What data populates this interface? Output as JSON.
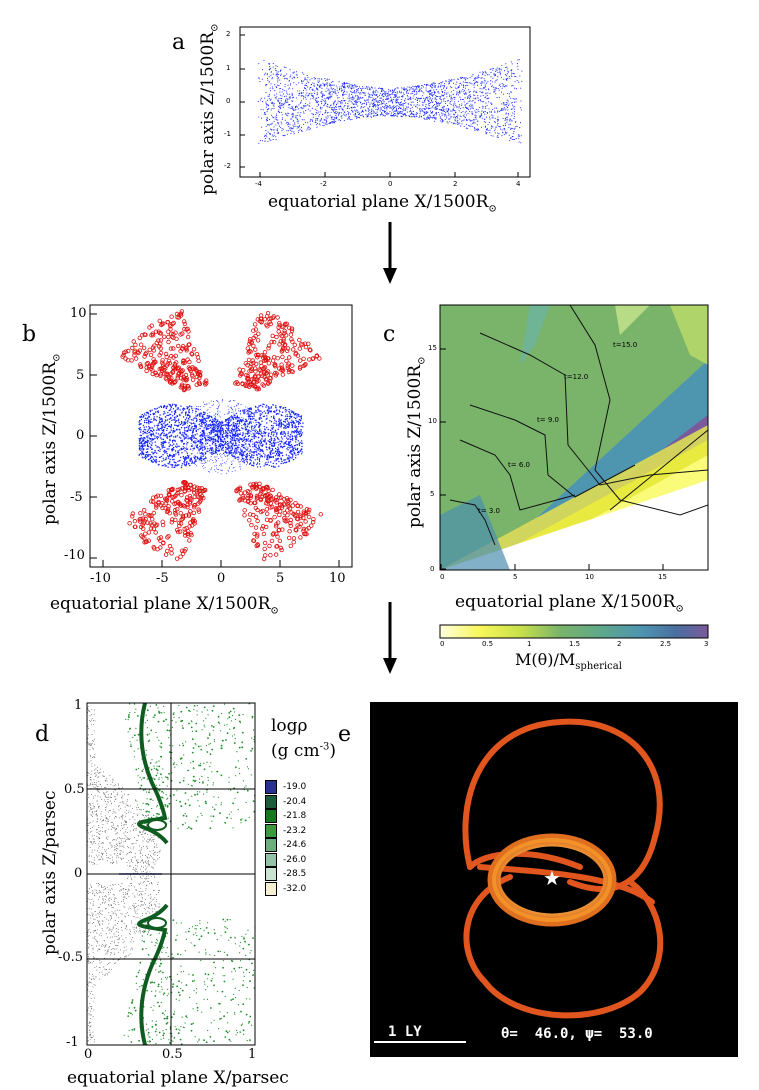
{
  "panels": {
    "a": {
      "label": "a",
      "ylabel": "polar axis Z/1500R",
      "xlabel": "equatorial plane X/1500R",
      "sun": "⊙",
      "xticks": [
        "-4",
        "-2",
        "0",
        "2",
        "4"
      ],
      "yticks": [
        "2",
        "1",
        "0",
        "-1",
        "-2"
      ]
    },
    "b": {
      "label": "b",
      "ylabel": "polar axis Z/1500R",
      "xlabel": "equatorial plane X/1500R",
      "sun": "⊙",
      "xticks": [
        "-10",
        "-5",
        "0",
        "5",
        "10"
      ],
      "yticks": [
        "10",
        "5",
        "0",
        "-5",
        "-10"
      ]
    },
    "c": {
      "label": "c",
      "ylabel": "polar axis Z/1500R",
      "xlabel": "equatorial plane X/1500R",
      "sun": "⊙",
      "xticks": [
        "0",
        "5",
        "10",
        "15"
      ],
      "yticks": [
        "15",
        "10",
        "5",
        "0"
      ],
      "contours": [
        "t=15.0",
        "t=12.0",
        "t= 9.0",
        "t= 6.0",
        "t= 3.0"
      ],
      "colorbar_ticks": [
        "0",
        "0.5",
        "1",
        "1.5",
        "2",
        "2.5",
        "3"
      ],
      "colorbar_label": "M(θ)/M",
      "colorbar_sub": "spherical"
    },
    "d": {
      "label": "d",
      "ylabel": "polar axis Z/parsec",
      "xlabel": "equatorial plane X/parsec",
      "xticks": [
        "0",
        "0.5",
        "1"
      ],
      "yticks": [
        "1",
        "0.5",
        "0",
        "-0.5",
        "-1"
      ],
      "legend_title": "logρ",
      "legend_unit": "(g cm",
      "legend_exp": "-3",
      "legend_close": ")",
      "legend": [
        {
          "value": "-19.0",
          "color": "#2b2f8f"
        },
        {
          "value": "-20.4",
          "color": "#1c5c3a"
        },
        {
          "value": "-21.8",
          "color": "#137a1e"
        },
        {
          "value": "-23.2",
          "color": "#3a9a3e"
        },
        {
          "value": "-24.6",
          "color": "#6cae7e"
        },
        {
          "value": "-26.0",
          "color": "#93c2a6"
        },
        {
          "value": "-28.5",
          "color": "#c9e2d2"
        },
        {
          "value": "-32.0",
          "color": "#f5f0d2"
        }
      ]
    },
    "e": {
      "label": "e",
      "scale": "1 LY",
      "angles": "θ=  46.0, ψ=  53.0",
      "star": "★"
    }
  }
}
